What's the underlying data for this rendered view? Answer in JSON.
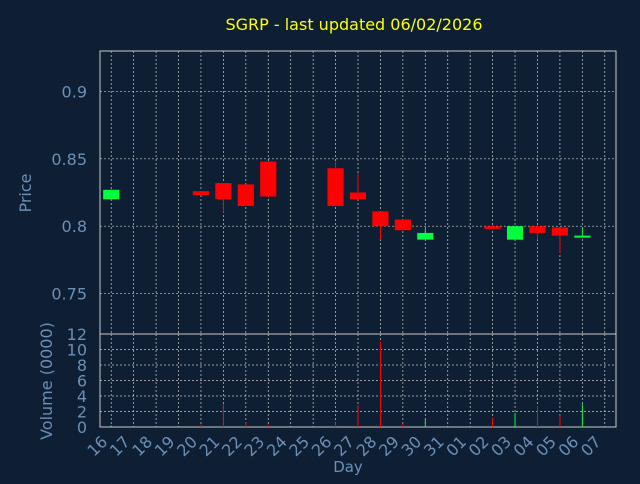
{
  "chart_data": [
    {
      "type": "candlestick",
      "title": "SGRP - last updated 06/02/2026",
      "ylabel": "Price",
      "ylim": [
        0.72,
        0.93
      ],
      "yticks": [
        0.75,
        0.8,
        0.85,
        0.9
      ],
      "ytick_labels": [
        "0.75",
        "0.8",
        "0.85",
        "0.9"
      ],
      "grid": true,
      "candles": [
        {
          "x": "16",
          "open": 0.82,
          "close": 0.827,
          "high": 0.827,
          "low": 0.82
        },
        {
          "x": "20",
          "open": 0.826,
          "close": 0.823,
          "high": 0.826,
          "low": 0.823
        },
        {
          "x": "21",
          "open": 0.832,
          "close": 0.82,
          "high": 0.832,
          "low": 0.81
        },
        {
          "x": "22",
          "open": 0.831,
          "close": 0.815,
          "high": 0.831,
          "low": 0.815
        },
        {
          "x": "23",
          "open": 0.848,
          "close": 0.822,
          "high": 0.848,
          "low": 0.822
        },
        {
          "x": "26",
          "open": 0.843,
          "close": 0.815,
          "high": 0.848,
          "low": 0.815
        },
        {
          "x": "27",
          "open": 0.825,
          "close": 0.82,
          "high": 0.839,
          "low": 0.82
        },
        {
          "x": "28",
          "open": 0.811,
          "close": 0.8,
          "high": 0.811,
          "low": 0.79
        },
        {
          "x": "29",
          "open": 0.805,
          "close": 0.797,
          "high": 0.805,
          "low": 0.797
        },
        {
          "x": "30",
          "open": 0.79,
          "close": 0.795,
          "high": 0.798,
          "low": 0.79
        },
        {
          "x": "02",
          "open": 0.8,
          "close": 0.798,
          "high": 0.8,
          "low": 0.798
        },
        {
          "x": "03",
          "open": 0.79,
          "close": 0.8,
          "high": 0.8,
          "low": 0.79
        },
        {
          "x": "04",
          "open": 0.8,
          "close": 0.795,
          "high": 0.8,
          "low": 0.79
        },
        {
          "x": "05",
          "open": 0.799,
          "close": 0.793,
          "high": 0.799,
          "low": 0.78
        },
        {
          "x": "06",
          "open": 0.792,
          "close": 0.793,
          "high": 0.799,
          "low": 0.792
        }
      ],
      "up_color": "#00ff3c",
      "down_color": "#ff0000"
    },
    {
      "type": "bar",
      "ylabel": "Volume (0000)",
      "xlabel": "Day",
      "ylim": [
        0,
        12
      ],
      "yticks": [
        0,
        2,
        4,
        6,
        8,
        10,
        12
      ],
      "ytick_labels": [
        "0",
        "2",
        "4",
        "6",
        "8",
        "10",
        "12"
      ],
      "grid": true,
      "categories": [
        "16",
        "17",
        "18",
        "19",
        "20",
        "21",
        "22",
        "23",
        "24",
        "25",
        "26",
        "27",
        "28",
        "29",
        "30",
        "31",
        "01",
        "02",
        "03",
        "04",
        "05",
        "06",
        "07"
      ],
      "bars": [
        {
          "x": "16",
          "value": 0.2,
          "direction": "up"
        },
        {
          "x": "20",
          "value": 0.3,
          "direction": "down"
        },
        {
          "x": "21",
          "value": 3.0,
          "direction": "down"
        },
        {
          "x": "22",
          "value": 0.6,
          "direction": "down"
        },
        {
          "x": "23",
          "value": 0.3,
          "direction": "down"
        },
        {
          "x": "26",
          "value": 0.6,
          "direction": "down"
        },
        {
          "x": "27",
          "value": 2.8,
          "direction": "down"
        },
        {
          "x": "28",
          "value": 11.0,
          "direction": "down"
        },
        {
          "x": "29",
          "value": 0.4,
          "direction": "down"
        },
        {
          "x": "30",
          "value": 1.0,
          "direction": "up"
        },
        {
          "x": "02",
          "value": 1.2,
          "direction": "down"
        },
        {
          "x": "03",
          "value": 1.8,
          "direction": "up"
        },
        {
          "x": "04",
          "value": 2.7,
          "direction": "down"
        },
        {
          "x": "05",
          "value": 1.5,
          "direction": "down"
        },
        {
          "x": "06",
          "value": 3.1,
          "direction": "up"
        }
      ]
    }
  ],
  "colors": {
    "background": "#0f1f33",
    "title": "#ffff00",
    "axis_text": "#6b8fb5",
    "frame": "#c8c8c8",
    "grid": "#c8c8c8"
  }
}
